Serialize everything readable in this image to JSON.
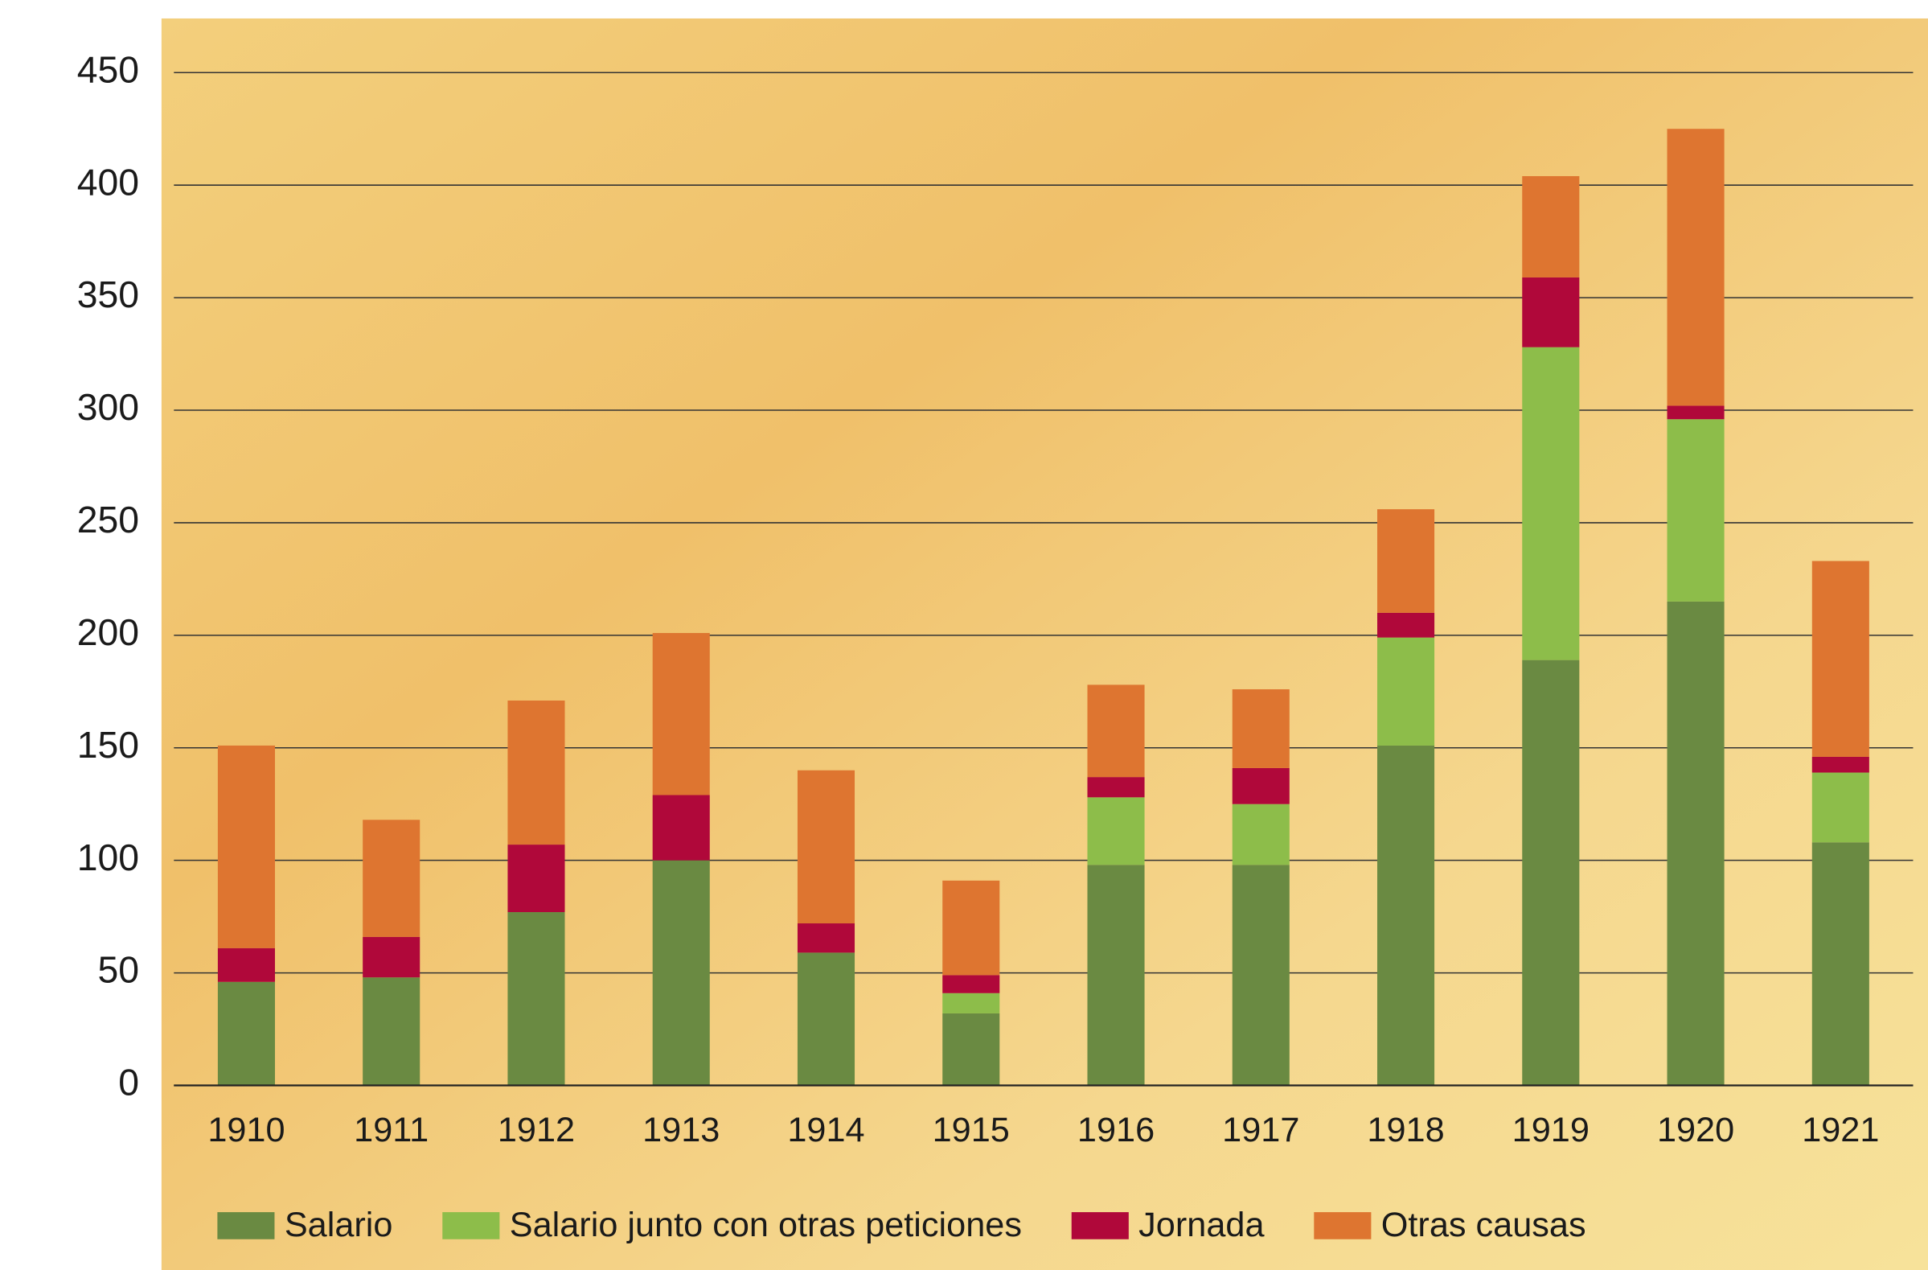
{
  "chart_data": {
    "type": "stacked_bar",
    "categories": [
      "1910",
      "1911",
      "1912",
      "1913",
      "1914",
      "1915",
      "1916",
      "1917",
      "1918",
      "1919",
      "1920",
      "1921"
    ],
    "series": [
      {
        "name": "Salario",
        "color": "#6a8a42",
        "values": [
          46,
          48,
          77,
          100,
          59,
          32,
          98,
          98,
          151,
          189,
          215,
          108
        ]
      },
      {
        "name": "Salario junto con otras peticiones",
        "color": "#8dbd4a",
        "values": [
          0,
          0,
          0,
          0,
          0,
          9,
          30,
          27,
          48,
          139,
          81,
          31
        ]
      },
      {
        "name": "Jornada",
        "color": "#b0083a",
        "values": [
          15,
          18,
          30,
          29,
          13,
          8,
          9,
          16,
          11,
          31,
          6,
          7
        ]
      },
      {
        "name": "Otras causas",
        "color": "#de7530",
        "values": [
          90,
          52,
          64,
          72,
          68,
          42,
          41,
          35,
          46,
          45,
          123,
          87
        ]
      }
    ],
    "ylim": [
      0,
      450
    ],
    "yticks": [
      0,
      50,
      100,
      150,
      200,
      250,
      300,
      350,
      400,
      450
    ],
    "grid": true,
    "legend": "bottom"
  }
}
